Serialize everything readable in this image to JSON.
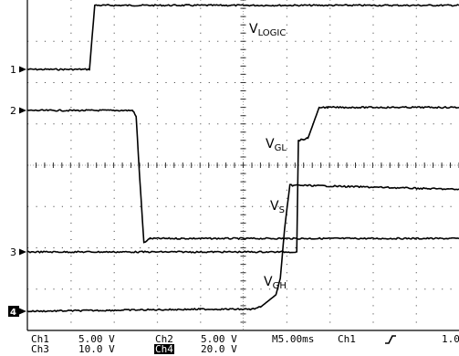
{
  "chart_data": {
    "type": "line",
    "title": "",
    "grid": true,
    "x": {
      "unit": "ms",
      "divisions": 10,
      "per_division": 5.0
    },
    "channels": [
      {
        "marker": "1",
        "label": "V",
        "label_sub": "LOGIC",
        "color": "#000000",
        "marker_inverted": false,
        "points": [
          [
            0,
            0
          ],
          [
            7.2,
            0
          ],
          [
            7.8,
            1.55
          ],
          [
            50,
            1.55
          ]
        ]
      },
      {
        "marker": "2",
        "label": "V",
        "label_sub": "GL",
        "color": "#000000",
        "marker_inverted": false,
        "points": [
          [
            0,
            0
          ],
          [
            12.2,
            0
          ],
          [
            12.6,
            -0.15
          ],
          [
            13.0,
            -1.6
          ],
          [
            13.5,
            -3.2
          ],
          [
            14.2,
            -3.1
          ],
          [
            50,
            -3.1
          ]
        ]
      },
      {
        "marker": "3",
        "label": "V",
        "label_sub": "S",
        "color": "#000000",
        "marker_inverted": false,
        "points": [
          [
            0,
            0
          ],
          [
            31.2,
            0
          ],
          [
            31.4,
            2.7
          ],
          [
            32.5,
            2.75
          ],
          [
            33.8,
            3.5
          ],
          [
            34.8,
            3.5
          ],
          [
            50,
            3.5
          ]
        ]
      },
      {
        "marker": "4",
        "label": "V",
        "label_sub": "GH",
        "color": "#000000",
        "marker_inverted": true,
        "points": [
          [
            0,
            0
          ],
          [
            20,
            0.05
          ],
          [
            26,
            0.05
          ],
          [
            27,
            0.1
          ],
          [
            28.8,
            0.4
          ],
          [
            29.3,
            0.8
          ],
          [
            29.8,
            2.0
          ],
          [
            30.4,
            3.05
          ],
          [
            31.5,
            3.05
          ],
          [
            50,
            2.95
          ]
        ]
      }
    ],
    "scale_line1": {
      "ch1": "Ch1",
      "ch1_scale": "5.00 V",
      "ch2": "Ch2",
      "ch2_scale": "5.00 V",
      "timebase": "M5.00ms",
      "trigger_source": "Ch1",
      "trigger_level": "1.0"
    },
    "scale_line2": {
      "ch3": "Ch3",
      "ch3_scale": "10.0 V",
      "ch4": "Ch4",
      "ch4_scale": "20.0 V"
    }
  }
}
